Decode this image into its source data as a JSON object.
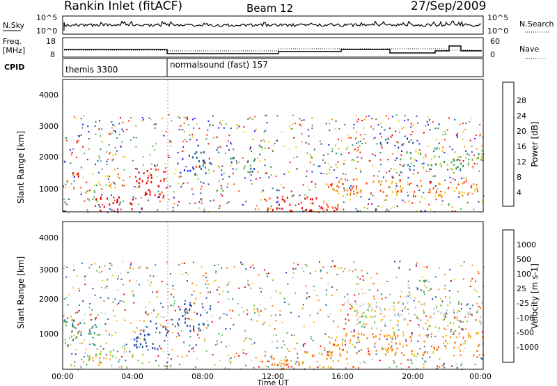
{
  "header": {
    "station": "Rankin Inlet (fitACF)",
    "beam": "Beam 12",
    "date": "27/Sep/2009"
  },
  "noise_panel": {
    "left_label": "N.Sky",
    "right_label": "N.Search",
    "left_ticks": [
      "10^5",
      "10^0"
    ],
    "right_ticks": [
      "10^5",
      "10^0"
    ]
  },
  "freq_panel": {
    "left_label_1": "Freq.",
    "left_label_2": "[MHz]",
    "right_label": "Nave",
    "left_ticks": [
      "18",
      "8"
    ],
    "right_ticks": [
      "60",
      "0"
    ]
  },
  "cpid_panel": {
    "label": "CPID",
    "modes": [
      "themis 3300",
      "normalsound (fast) 157"
    ]
  },
  "axes": {
    "ylabel": "Slant Range [km]",
    "xlabel": "Time UT",
    "yticks": [
      "1000",
      "2000",
      "3000",
      "4000"
    ],
    "xticks": [
      "00:00",
      "04:00",
      "08:00",
      "12:00",
      "16:00",
      "20:00",
      "00:00"
    ]
  },
  "power_scale": {
    "label": "Power [dB]",
    "ticks": [
      "4",
      "8",
      "12",
      "16",
      "20",
      "24",
      "28"
    ],
    "colors": [
      "#1a1aff",
      "#1f4fa8",
      "#2e8b57",
      "#5fb84a",
      "#e6d21e",
      "#f28c0f",
      "#ff3a14",
      "#e80000"
    ]
  },
  "velocity_scale": {
    "label": "Velocity [m s-1]",
    "ticks": [
      "1000",
      "500",
      "100",
      "25",
      "-25",
      "-100",
      "-500",
      "-1000"
    ],
    "colors": [
      "#1f3fb0",
      "#2e6f9e",
      "#3e9c6a",
      "#6cc84a",
      "#c8c8c8",
      "#f2c01e",
      "#f28c0f",
      "#ff6a0a",
      "#e80000"
    ]
  },
  "chart_data": {
    "type": "heatmap",
    "title": "Rankin Inlet (fitACF)",
    "xlabel": "Time UT",
    "ylabel": "Slant Range [km]",
    "xlim": [
      0,
      24
    ],
    "ylim": [
      180,
      4500
    ],
    "x_unit": "hours UT",
    "cpid_change_hour": 6.0,
    "power_blobs": [
      {
        "t": [
          0.0,
          0.9
        ],
        "r": [
          900,
          1500
        ],
        "level": 6
      },
      {
        "t": [
          0.9,
          2.0
        ],
        "r": [
          500,
          900
        ],
        "level": 4
      },
      {
        "t": [
          1.5,
          4.0
        ],
        "r": [
          180,
          700
        ],
        "level": 7
      },
      {
        "t": [
          2.0,
          3.5
        ],
        "r": [
          1000,
          1400
        ],
        "level": 5
      },
      {
        "t": [
          4.0,
          6.0
        ],
        "r": [
          700,
          1600
        ],
        "level": 7
      },
      {
        "t": [
          6.5,
          8.5
        ],
        "r": [
          1400,
          2200
        ],
        "level": 1
      },
      {
        "t": [
          9.6,
          11.0
        ],
        "r": [
          1500,
          2000
        ],
        "level": 2
      },
      {
        "t": [
          11.5,
          16.0
        ],
        "r": [
          180,
          700
        ],
        "level": 7
      },
      {
        "t": [
          15.0,
          24.0
        ],
        "r": [
          700,
          1300
        ],
        "level": 5
      },
      {
        "t": [
          19.0,
          24.0
        ],
        "r": [
          1600,
          2200
        ],
        "level": 3
      },
      {
        "t": [
          18.0,
          20.0
        ],
        "r": [
          2300,
          2600
        ],
        "level": 1
      }
    ],
    "velocity_blobs": [
      {
        "t": [
          0.0,
          2.0
        ],
        "r": [
          900,
          1700
        ],
        "level": 2
      },
      {
        "t": [
          1.0,
          4.0
        ],
        "r": [
          200,
          800
        ],
        "level": 4
      },
      {
        "t": [
          4.0,
          6.0
        ],
        "r": [
          800,
          1700
        ],
        "level": 0
      },
      {
        "t": [
          6.5,
          8.5
        ],
        "r": [
          1300,
          2200
        ],
        "level": 0
      },
      {
        "t": [
          10.8,
          11.5
        ],
        "r": [
          1500,
          2000
        ],
        "level": 5
      },
      {
        "t": [
          11.5,
          17.0
        ],
        "r": [
          200,
          700
        ],
        "level": 6
      },
      {
        "t": [
          15.0,
          24.0
        ],
        "r": [
          600,
          1300
        ],
        "level": 6
      },
      {
        "t": [
          16.0,
          24.0
        ],
        "r": [
          1400,
          2200
        ],
        "level": 4
      },
      {
        "t": [
          19.5,
          21.0
        ],
        "r": [
          2300,
          2800
        ],
        "level": 3
      }
    ]
  }
}
